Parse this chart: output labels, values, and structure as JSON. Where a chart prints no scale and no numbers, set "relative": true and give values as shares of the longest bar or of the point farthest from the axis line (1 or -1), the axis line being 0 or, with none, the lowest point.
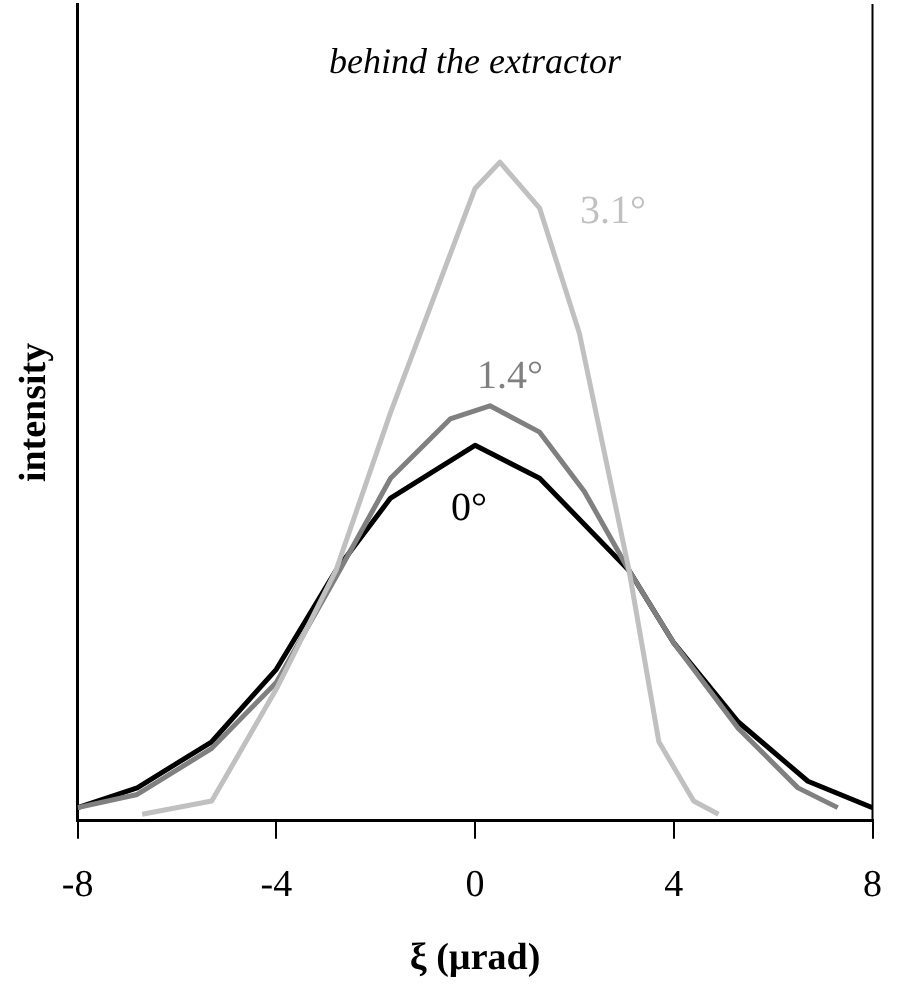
{
  "chart_data": {
    "type": "line",
    "title": "behind the extractor",
    "xlabel": "ξ (µrad)",
    "ylabel": "intensity",
    "relative": true,
    "xlim": [
      -8,
      8
    ],
    "xticks": [
      -8,
      -4,
      0,
      4,
      8
    ],
    "grid": false,
    "legend": false,
    "tick_labels": "x",
    "marker": "none",
    "line_style": "solid",
    "series": [
      {
        "name": "3.1°",
        "color": "#c0c0c0",
        "x": [
          -6.7,
          -5.3,
          -4,
          -2.8,
          -1.7,
          -0.6,
          0,
          0.5,
          1.3,
          2.1,
          3.1,
          3.7,
          4.4,
          4.9
        ],
        "values": [
          0.01,
          0.03,
          0.2,
          0.38,
          0.62,
          0.84,
          0.96,
          1.0,
          0.93,
          0.74,
          0.38,
          0.12,
          0.03,
          0.01
        ]
      },
      {
        "name": "1.4°",
        "color": "#808080",
        "x": [
          -8,
          -6.8,
          -5.3,
          -4,
          -2.8,
          -1.7,
          -0.5,
          0.3,
          1.3,
          2.2,
          3.1,
          4,
          5.3,
          6.5,
          7.3
        ],
        "values": [
          0.02,
          0.04,
          0.11,
          0.21,
          0.37,
          0.52,
          0.61,
          0.63,
          0.59,
          0.5,
          0.38,
          0.27,
          0.14,
          0.05,
          0.02
        ]
      },
      {
        "name": "0°",
        "color": "#000000",
        "x": [
          -8,
          -6.8,
          -5.3,
          -4,
          -2.8,
          -1.7,
          0,
          1.3,
          3.1,
          4,
          5.3,
          6.7,
          8
        ],
        "values": [
          0.02,
          0.05,
          0.12,
          0.23,
          0.38,
          0.49,
          0.57,
          0.52,
          0.38,
          0.27,
          0.15,
          0.06,
          0.02
        ]
      }
    ]
  }
}
